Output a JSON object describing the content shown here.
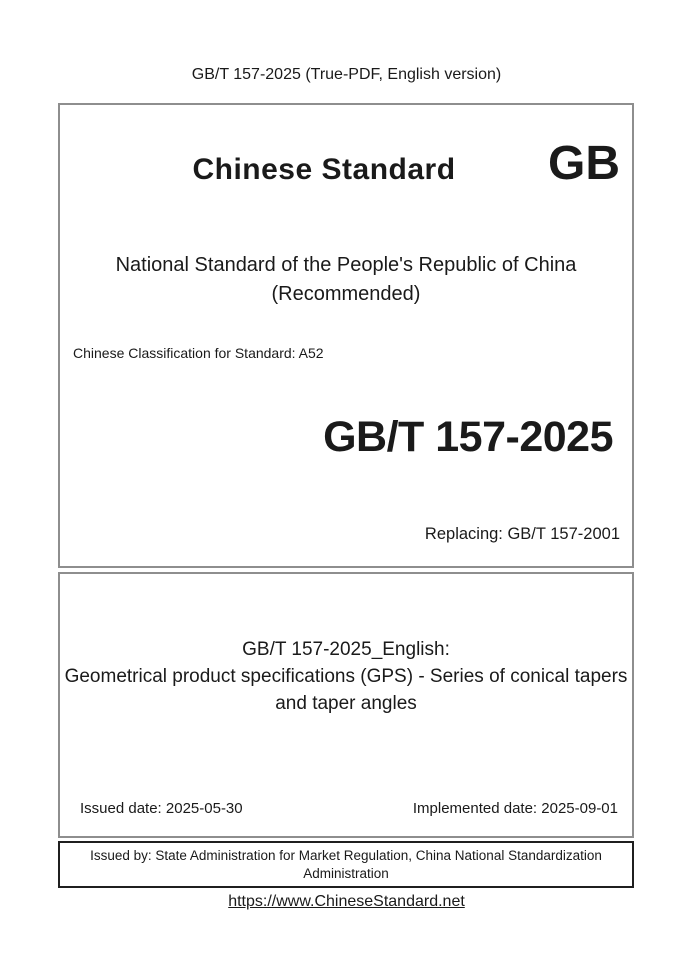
{
  "page": {
    "header": "GB/T 157-2025 (True-PDF, English version)",
    "footer_url": "https://www.ChineseStandard.net"
  },
  "cover": {
    "brand": "Chinese Standard",
    "gb_logo": "GB",
    "national_line1": "National Standard of the People's Republic of China",
    "national_line2": "(Recommended)",
    "classification": "Chinese Classification for Standard: A52",
    "standard_code": "GB/T 157-2025",
    "replacing": "Replacing: GB/T 157-2001"
  },
  "title_block": {
    "line1": "GB/T 157-2025_English:",
    "title": "Geometrical product specifications (GPS) - Series of conical tapers and taper angles",
    "issued_date": "Issued date: 2025-05-30",
    "implemented_date": "Implemented date: 2025-09-01"
  },
  "issuer": {
    "text": "Issued by: State Administration for Market Regulation, China National Standardization Administration"
  },
  "colors": {
    "text": "#1a1a1a",
    "box_border_gray": "#8e8e8e",
    "box_border_dark": "#1f1f1f",
    "background": "#ffffff"
  }
}
